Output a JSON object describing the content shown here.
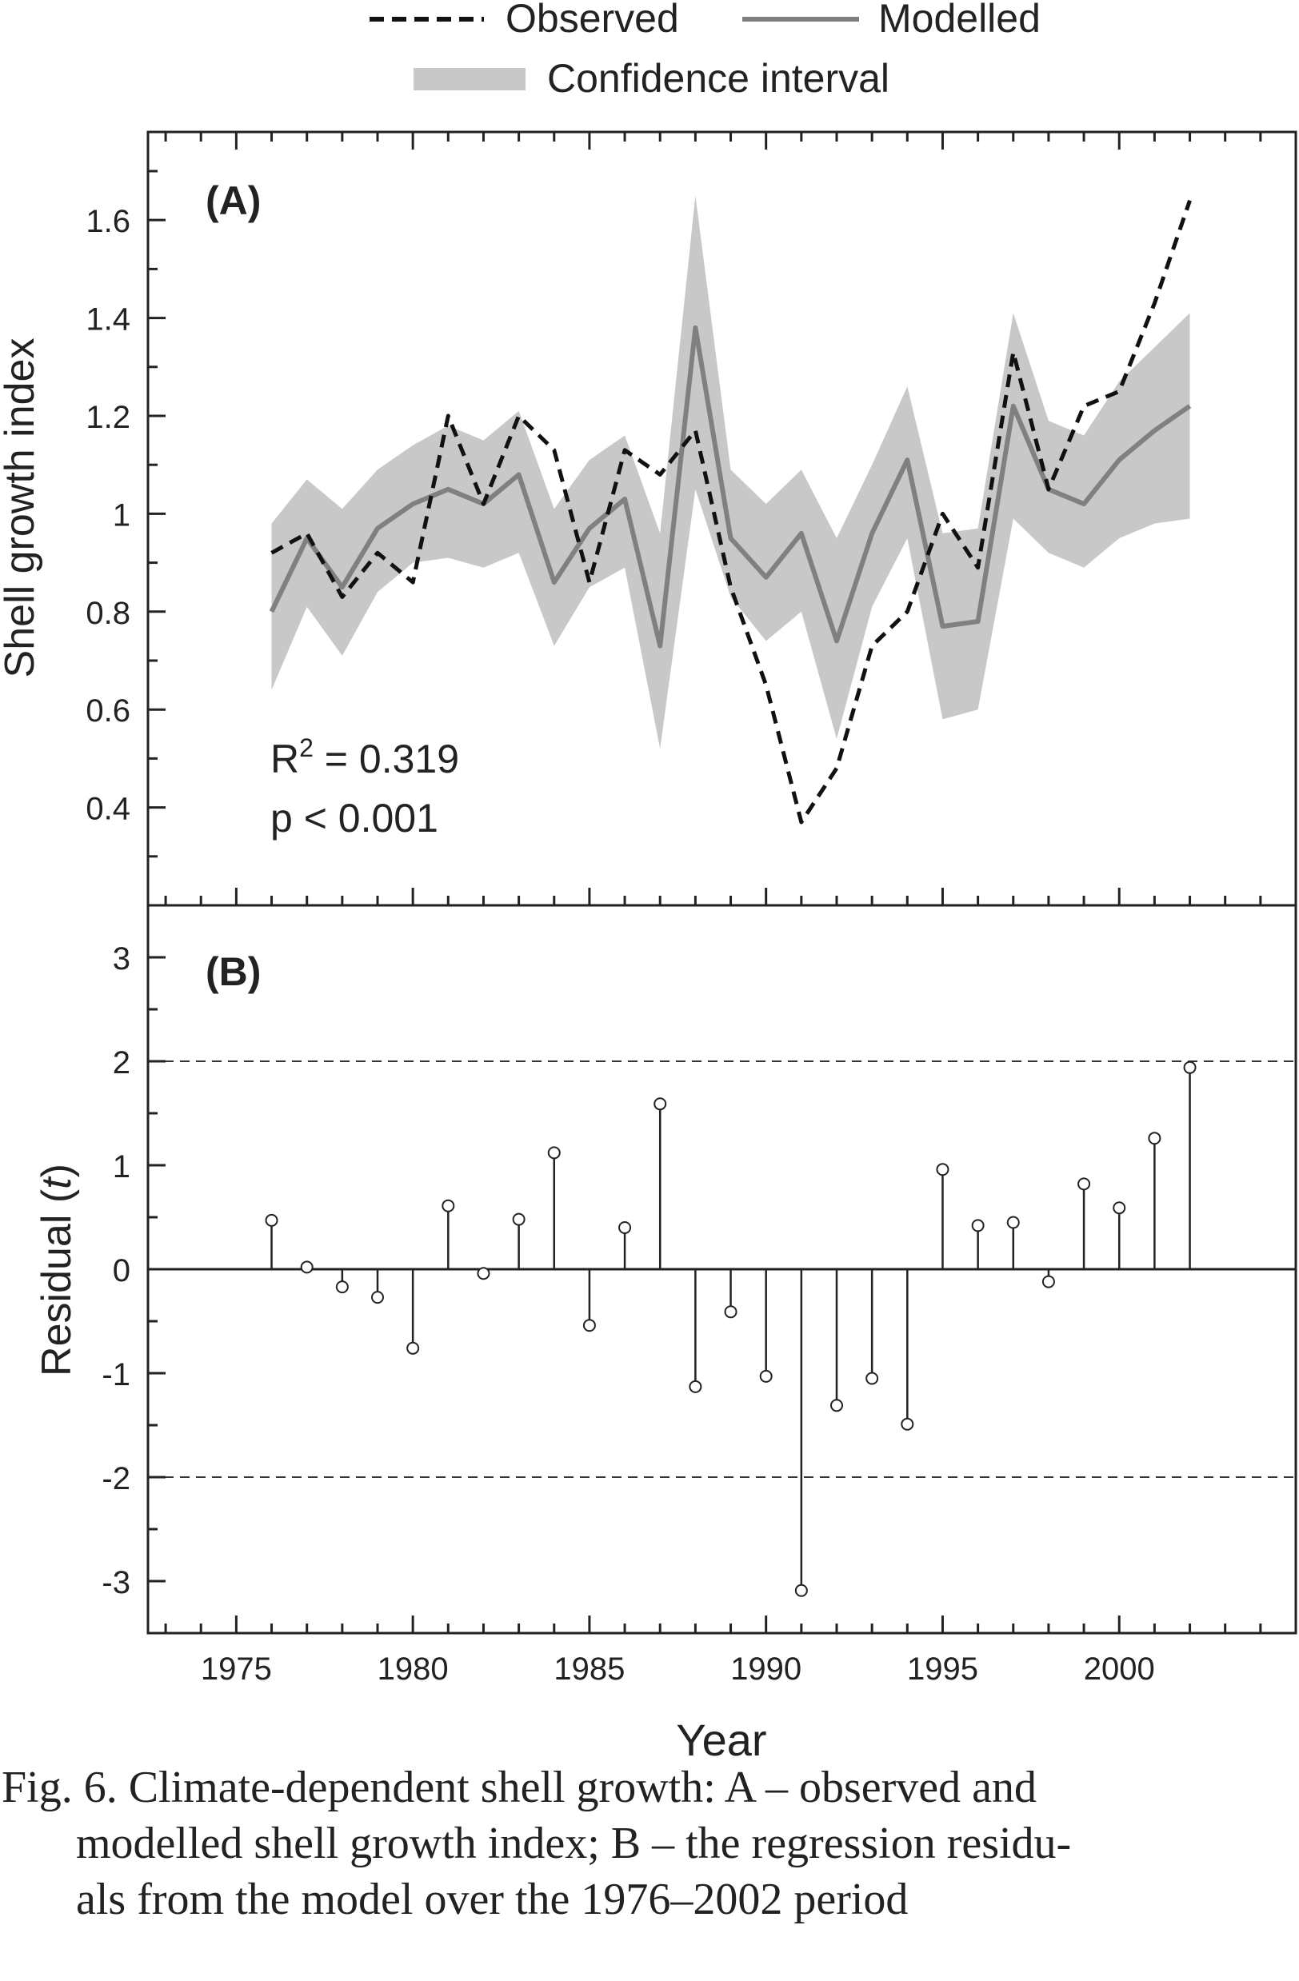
{
  "legend": {
    "observed": "Observed",
    "modelled": "Modelled",
    "confidence": "Confidence interval"
  },
  "colors": {
    "observed": "#111111",
    "modelled": "#808080",
    "confidence": "#c8c8c8",
    "axis": "#222222"
  },
  "chart_data": [
    {
      "panel": "(A)",
      "type": "line",
      "ylabel": "Shell growth index",
      "xlim": [
        1972.5,
        2005
      ],
      "ylim": [
        0.2,
        1.78
      ],
      "yticks": [
        0.4,
        0.6,
        0.8,
        1,
        1.2,
        1.4,
        1.6
      ],
      "ytick_labels": [
        "0.4",
        "0.6",
        "0.8",
        "1",
        "1.2",
        "1.4",
        "1.6"
      ],
      "annotation": {
        "r2_prefix": "R",
        "r2_sup": "2",
        "r2_value": " = 0.319",
        "p": "p < 0.001"
      },
      "x": [
        1976,
        1977,
        1978,
        1979,
        1980,
        1981,
        1982,
        1983,
        1984,
        1985,
        1986,
        1987,
        1988,
        1989,
        1990,
        1991,
        1992,
        1993,
        1994,
        1995,
        1996,
        1997,
        1998,
        1999,
        2000,
        2001,
        2002
      ],
      "series": [
        {
          "name": "Observed",
          "style": "dashed",
          "values": [
            0.92,
            0.96,
            0.83,
            0.92,
            0.86,
            1.2,
            1.02,
            1.2,
            1.13,
            0.86,
            1.13,
            1.08,
            1.17,
            0.85,
            0.65,
            0.37,
            0.48,
            0.73,
            0.8,
            1.0,
            0.89,
            1.33,
            1.05,
            1.22,
            1.25,
            1.43,
            1.64
          ]
        },
        {
          "name": "Modelled",
          "style": "solid",
          "values": [
            0.8,
            0.95,
            0.85,
            0.97,
            1.02,
            1.05,
            1.02,
            1.08,
            0.86,
            0.97,
            1.03,
            0.73,
            1.38,
            0.95,
            0.87,
            0.96,
            0.74,
            0.96,
            1.11,
            0.77,
            0.78,
            1.22,
            1.05,
            1.02,
            1.11,
            1.17,
            1.22
          ]
        },
        {
          "name": "Confidence interval",
          "style": "band",
          "lower": [
            0.64,
            0.81,
            0.71,
            0.84,
            0.9,
            0.91,
            0.89,
            0.92,
            0.73,
            0.85,
            0.89,
            0.52,
            1.05,
            0.83,
            0.74,
            0.8,
            0.54,
            0.81,
            0.95,
            0.58,
            0.6,
            0.99,
            0.92,
            0.89,
            0.95,
            0.98,
            0.99
          ],
          "upper": [
            0.98,
            1.07,
            1.01,
            1.09,
            1.14,
            1.18,
            1.15,
            1.21,
            1.01,
            1.11,
            1.16,
            0.96,
            1.65,
            1.09,
            1.02,
            1.09,
            0.95,
            1.1,
            1.26,
            0.96,
            0.97,
            1.41,
            1.19,
            1.16,
            1.27,
            1.34,
            1.41
          ]
        }
      ]
    },
    {
      "panel": "(B)",
      "type": "scatter",
      "style": "stem",
      "ylabel_text": "Residual (",
      "ylabel_italic": "t",
      "ylabel_close": ")",
      "xlabel": "Year",
      "xlim": [
        1972.5,
        2005
      ],
      "ylim": [
        -3.5,
        3.5
      ],
      "yticks": [
        -3,
        -2,
        -1,
        0,
        1,
        2,
        3
      ],
      "ytick_labels": [
        "-3",
        "-2",
        "-1",
        "0",
        "1",
        "2",
        "3"
      ],
      "xticks": [
        1975,
        1980,
        1985,
        1990,
        1995,
        2000
      ],
      "xtick_labels": [
        "1975",
        "1980",
        "1985",
        "1990",
        "1995",
        "2000"
      ],
      "reference_lines": [
        2,
        -2
      ],
      "x": [
        1976,
        1977,
        1978,
        1979,
        1980,
        1981,
        1982,
        1983,
        1984,
        1985,
        1986,
        1987,
        1988,
        1989,
        1990,
        1991,
        1992,
        1993,
        1994,
        1995,
        1996,
        1997,
        1998,
        1999,
        2000,
        2001,
        2002
      ],
      "values": [
        0.47,
        0.02,
        -0.17,
        -0.27,
        -0.76,
        0.61,
        -0.04,
        0.48,
        1.12,
        -0.54,
        0.4,
        1.59,
        -1.13,
        -0.41,
        -1.03,
        -3.09,
        -1.31,
        -1.05,
        -1.49,
        0.96,
        0.42,
        0.45,
        -0.12,
        0.82,
        0.59,
        1.26,
        1.94
      ]
    }
  ],
  "caption": {
    "line1": "Fig. 6. Climate-dependent shell growth: A – observed and",
    "line2": "modelled shell growth index; B – the regression residu-",
    "line3": "als from the model over the 1976–2002 period"
  }
}
